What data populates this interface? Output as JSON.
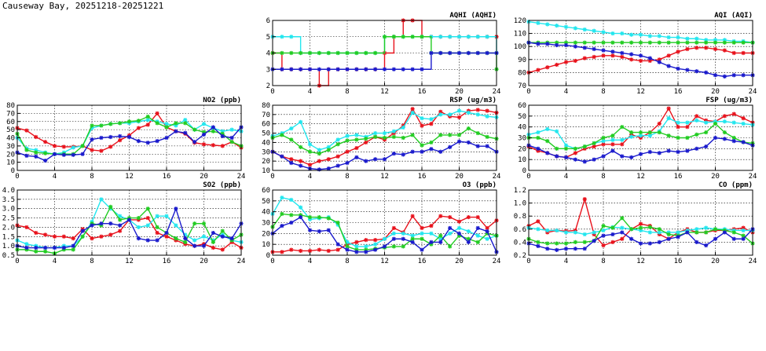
{
  "page": {
    "title": "Causeway Bay, 20251218-20251221"
  },
  "colors": {
    "red": "#e8121c",
    "cyan": "#22e6ee",
    "green": "#22cc22",
    "blue": "#1a1acc"
  },
  "chart_data": [
    {
      "id": "aqhi",
      "type": "line",
      "title": "AQHI (AQHI)",
      "ylim": [
        2,
        6
      ],
      "yticks": [
        2,
        3,
        4,
        5,
        6
      ],
      "xlim": [
        0,
        24
      ],
      "xticks": [
        0,
        4,
        8,
        12,
        16,
        20,
        24
      ],
      "grid": true,
      "step": true,
      "series": [
        {
          "color": "#e8121c",
          "values": [
            4,
            3,
            3,
            3,
            3,
            2,
            3,
            3,
            3,
            3,
            3,
            3,
            4,
            5,
            6,
            6,
            5,
            5,
            5,
            5,
            5,
            5,
            5,
            5,
            5
          ]
        },
        {
          "color": "#22e6ee",
          "values": [
            5,
            5,
            5,
            4,
            4,
            4,
            4,
            4,
            4,
            4,
            4,
            4,
            5,
            5,
            5,
            5,
            5,
            5,
            5,
            5,
            5,
            5,
            5,
            5,
            4
          ]
        },
        {
          "color": "#22cc22",
          "values": [
            4,
            4,
            4,
            4,
            4,
            4,
            4,
            4,
            4,
            4,
            4,
            4,
            5,
            5,
            5,
            5,
            5,
            4,
            4,
            4,
            4,
            4,
            4,
            4,
            3
          ]
        },
        {
          "color": "#1a1acc",
          "values": [
            3,
            3,
            3,
            3,
            3,
            3,
            3,
            3,
            3,
            3,
            3,
            3,
            3,
            3,
            3,
            3,
            3,
            4,
            4,
            4,
            4,
            4,
            4,
            4,
            4
          ]
        }
      ]
    },
    {
      "id": "aqi",
      "type": "line",
      "title": "AQI (AQI)",
      "ylim": [
        70,
        120
      ],
      "yticks": [
        70,
        80,
        90,
        100,
        110,
        120
      ],
      "xlim": [
        0,
        24
      ],
      "xticks": [
        0,
        4,
        8,
        12,
        16,
        20,
        24
      ],
      "grid": true,
      "series": [
        {
          "color": "#e8121c",
          "values": [
            80,
            82,
            84,
            86,
            88,
            89,
            91,
            92,
            93,
            93,
            92,
            90,
            89,
            89,
            90,
            93,
            96,
            98,
            99,
            99,
            98,
            97,
            95,
            95,
            95
          ]
        },
        {
          "color": "#22e6ee",
          "values": [
            119,
            118,
            117,
            116,
            115,
            114,
            113,
            112,
            111,
            110,
            110,
            109,
            109,
            108,
            108,
            107,
            107,
            106,
            106,
            105,
            105,
            105,
            104,
            104,
            103
          ]
        },
        {
          "color": "#22cc22",
          "values": [
            103,
            103,
            103,
            103,
            103,
            103,
            103,
            103,
            103,
            103,
            103,
            103,
            103,
            103,
            103,
            103,
            103,
            103,
            103,
            103,
            103,
            103,
            103,
            103,
            103
          ]
        },
        {
          "color": "#1a1acc",
          "values": [
            103,
            102,
            102,
            101,
            101,
            100,
            99,
            98,
            97,
            96,
            95,
            94,
            93,
            91,
            88,
            85,
            83,
            82,
            81,
            80,
            78,
            77,
            78,
            78,
            78
          ]
        }
      ]
    },
    {
      "id": "no2",
      "type": "line",
      "title": "NO2 (ppb)",
      "ylim": [
        0,
        80
      ],
      "yticks": [
        0,
        10,
        20,
        30,
        40,
        50,
        60,
        70,
        80
      ],
      "xlim": [
        0,
        24
      ],
      "xticks": [
        0,
        4,
        8,
        12,
        16,
        20,
        24
      ],
      "grid": true,
      "series": [
        {
          "color": "#e8121c",
          "values": [
            52,
            49,
            41,
            35,
            30,
            29,
            29,
            30,
            25,
            24,
            29,
            37,
            43,
            52,
            56,
            70,
            53,
            48,
            45,
            34,
            32,
            31,
            30,
            35,
            28
          ]
        },
        {
          "color": "#22e6ee",
          "values": [
            40,
            27,
            25,
            22,
            20,
            22,
            28,
            30,
            52,
            55,
            57,
            58,
            58,
            60,
            62,
            60,
            57,
            55,
            62,
            50,
            57,
            52,
            48,
            50,
            48
          ]
        },
        {
          "color": "#22cc22",
          "values": [
            45,
            25,
            22,
            21,
            20,
            20,
            20,
            30,
            55,
            55,
            57,
            58,
            60,
            61,
            66,
            58,
            53,
            58,
            58,
            50,
            47,
            48,
            45,
            35,
            30
          ]
        },
        {
          "color": "#1a1acc",
          "values": [
            22,
            18,
            17,
            12,
            20,
            19,
            19,
            20,
            38,
            40,
            41,
            42,
            41,
            36,
            34,
            36,
            40,
            48,
            46,
            35,
            44,
            53,
            42,
            40,
            53
          ]
        }
      ]
    },
    {
      "id": "rsp",
      "type": "line",
      "title": "RSP (ug/m3)",
      "ylim": [
        10,
        80
      ],
      "yticks": [
        10,
        20,
        30,
        40,
        50,
        60,
        70,
        80
      ],
      "xlim": [
        0,
        24
      ],
      "xticks": [
        0,
        4,
        8,
        12,
        16,
        20,
        24
      ],
      "grid": true,
      "series": [
        {
          "color": "#e8121c",
          "values": [
            30,
            25,
            22,
            20,
            16,
            20,
            22,
            25,
            30,
            34,
            40,
            46,
            43,
            50,
            58,
            76,
            58,
            60,
            73,
            68,
            67,
            74,
            75,
            74,
            72
          ]
        },
        {
          "color": "#22e6ee",
          "values": [
            47,
            50,
            55,
            62,
            38,
            32,
            35,
            43,
            47,
            48,
            46,
            50,
            50,
            52,
            56,
            72,
            66,
            65,
            70,
            70,
            74,
            72,
            70,
            68,
            67
          ]
        },
        {
          "color": "#22cc22",
          "values": [
            45,
            48,
            43,
            35,
            30,
            28,
            32,
            38,
            42,
            43,
            44,
            46,
            45,
            46,
            45,
            48,
            37,
            40,
            48,
            48,
            48,
            55,
            50,
            46,
            44
          ]
        },
        {
          "color": "#1a1acc",
          "values": [
            30,
            25,
            18,
            15,
            12,
            11,
            12,
            15,
            18,
            24,
            20,
            22,
            22,
            28,
            27,
            30,
            30,
            33,
            30,
            35,
            41,
            40,
            36,
            36,
            30
          ]
        }
      ]
    },
    {
      "id": "fsp",
      "type": "line",
      "title": "FSP (ug/m3)",
      "ylim": [
        0,
        60
      ],
      "yticks": [
        0,
        10,
        20,
        30,
        40,
        50,
        60
      ],
      "xlim": [
        0,
        24
      ],
      "xticks": [
        0,
        4,
        8,
        12,
        16,
        20,
        24
      ],
      "grid": true,
      "series": [
        {
          "color": "#e8121c",
          "values": [
            22,
            18,
            16,
            13,
            12,
            16,
            20,
            22,
            24,
            24,
            24,
            33,
            30,
            35,
            43,
            57,
            40,
            40,
            50,
            46,
            45,
            50,
            52,
            48,
            44
          ]
        },
        {
          "color": "#22e6ee",
          "values": [
            33,
            35,
            38,
            36,
            23,
            20,
            22,
            25,
            27,
            28,
            28,
            31,
            32,
            32,
            36,
            48,
            44,
            44,
            46,
            44,
            45,
            45,
            44,
            43,
            42
          ]
        },
        {
          "color": "#22cc22",
          "values": [
            30,
            30,
            27,
            20,
            20,
            20,
            22,
            25,
            30,
            32,
            40,
            35,
            35,
            35,
            35,
            32,
            30,
            30,
            33,
            35,
            43,
            35,
            30,
            26,
            25
          ]
        },
        {
          "color": "#1a1acc",
          "values": [
            23,
            20,
            16,
            13,
            12,
            10,
            8,
            10,
            13,
            18,
            13,
            12,
            15,
            17,
            16,
            18,
            17,
            18,
            20,
            22,
            30,
            29,
            27,
            26,
            23
          ]
        }
      ]
    },
    {
      "id": "so2",
      "type": "line",
      "title": "SO2 (ppb)",
      "ylim": [
        0.5,
        4.0
      ],
      "yticks": [
        "0.5",
        "1.0",
        "1.5",
        "2.0",
        "2.5",
        "3.0",
        "3.5",
        "4.0"
      ],
      "xlim": [
        0,
        24
      ],
      "xticks": [
        0,
        4,
        8,
        12,
        16,
        20,
        24
      ],
      "grid": true,
      "series": [
        {
          "color": "#e8121c",
          "values": [
            2.1,
            2.0,
            1.7,
            1.6,
            1.5,
            1.5,
            1.4,
            1.9,
            1.4,
            1.5,
            1.6,
            1.8,
            2.4,
            2.4,
            2.5,
            1.7,
            1.5,
            1.3,
            1.1,
            1.0,
            1.1,
            0.9,
            0.8,
            1.2,
            0.9
          ]
        },
        {
          "color": "#22e6ee",
          "values": [
            1.3,
            1.1,
            1.0,
            0.9,
            0.9,
            1.0,
            1.0,
            1.5,
            2.3,
            3.5,
            3.0,
            2.6,
            2.4,
            2.0,
            2.1,
            2.6,
            2.6,
            2.1,
            1.6,
            1.3,
            1.5,
            1.3,
            1.6,
            1.3,
            1.2
          ]
        },
        {
          "color": "#22cc22",
          "values": [
            0.8,
            0.8,
            0.7,
            0.7,
            0.6,
            0.8,
            0.8,
            1.5,
            2.2,
            2.1,
            3.1,
            2.4,
            2.5,
            2.5,
            3.0,
            2.0,
            1.7,
            1.4,
            1.2,
            2.2,
            2.2,
            1.2,
            1.8,
            1.3,
            1.6
          ]
        },
        {
          "color": "#1a1acc",
          "values": [
            1.0,
            0.9,
            0.9,
            0.9,
            0.9,
            0.9,
            1.0,
            1.8,
            2.1,
            2.2,
            2.2,
            2.1,
            2.4,
            1.4,
            1.3,
            1.3,
            1.7,
            3.0,
            1.4,
            1.0,
            1.0,
            1.7,
            1.5,
            1.4,
            2.2
          ]
        }
      ]
    },
    {
      "id": "o3",
      "type": "line",
      "title": "O3 (ppb)",
      "ylim": [
        0,
        60
      ],
      "yticks": [
        0,
        10,
        20,
        30,
        40,
        50,
        60
      ],
      "xlim": [
        0,
        24
      ],
      "xticks": [
        0,
        4,
        8,
        12,
        16,
        20,
        24
      ],
      "grid": true,
      "series": [
        {
          "color": "#e8121c",
          "values": [
            3,
            3,
            5,
            4,
            4,
            5,
            4,
            5,
            10,
            12,
            14,
            14,
            15,
            25,
            21,
            36,
            25,
            27,
            36,
            35,
            31,
            35,
            35,
            25,
            32
          ]
        },
        {
          "color": "#22e6ee",
          "values": [
            38,
            53,
            51,
            44,
            33,
            34,
            35,
            28,
            12,
            8,
            8,
            10,
            15,
            20,
            20,
            18,
            20,
            20,
            15,
            20,
            25,
            22,
            18,
            15,
            18
          ]
        },
        {
          "color": "#22cc22",
          "values": [
            26,
            38,
            37,
            37,
            35,
            35,
            34,
            30,
            8,
            5,
            5,
            6,
            7,
            8,
            8,
            15,
            15,
            10,
            18,
            8,
            18,
            15,
            12,
            20,
            18
          ]
        },
        {
          "color": "#1a1acc",
          "values": [
            20,
            27,
            30,
            35,
            23,
            22,
            23,
            10,
            5,
            3,
            3,
            5,
            8,
            15,
            15,
            12,
            5,
            12,
            12,
            25,
            20,
            12,
            25,
            22,
            3
          ]
        }
      ]
    },
    {
      "id": "co",
      "type": "line",
      "title": "CO (ppm)",
      "ylim": [
        0.2,
        1.2
      ],
      "yticks": [
        "0.2",
        "0.4",
        "0.6",
        "0.8",
        "1.0",
        "1.2"
      ],
      "xlim": [
        0,
        24
      ],
      "xticks": [
        0,
        4,
        8,
        12,
        16,
        20,
        24
      ],
      "grid": true,
      "series": [
        {
          "color": "#e8121c",
          "values": [
            0.65,
            0.72,
            0.55,
            0.58,
            0.57,
            0.58,
            1.06,
            0.52,
            0.35,
            0.4,
            0.45,
            0.6,
            0.68,
            0.65,
            0.52,
            0.45,
            0.55,
            0.6,
            0.55,
            0.55,
            0.58,
            0.58,
            0.6,
            0.62,
            0.55
          ]
        },
        {
          "color": "#22e6ee",
          "values": [
            0.62,
            0.6,
            0.58,
            0.58,
            0.55,
            0.55,
            0.52,
            0.55,
            0.58,
            0.63,
            0.62,
            0.6,
            0.58,
            0.55,
            0.55,
            0.55,
            0.55,
            0.58,
            0.6,
            0.62,
            0.6,
            0.6,
            0.58,
            0.58,
            0.58
          ]
        },
        {
          "color": "#22cc22",
          "values": [
            0.45,
            0.4,
            0.38,
            0.38,
            0.38,
            0.4,
            0.4,
            0.42,
            0.65,
            0.62,
            0.77,
            0.6,
            0.62,
            0.63,
            0.6,
            0.52,
            0.5,
            0.55,
            0.55,
            0.55,
            0.6,
            0.58,
            0.55,
            0.5,
            0.38
          ]
        },
        {
          "color": "#1a1acc",
          "values": [
            0.38,
            0.34,
            0.3,
            0.28,
            0.3,
            0.3,
            0.3,
            0.42,
            0.5,
            0.52,
            0.55,
            0.45,
            0.38,
            0.38,
            0.4,
            0.45,
            0.48,
            0.55,
            0.4,
            0.35,
            0.45,
            0.55,
            0.45,
            0.45,
            0.6
          ]
        }
      ]
    }
  ]
}
